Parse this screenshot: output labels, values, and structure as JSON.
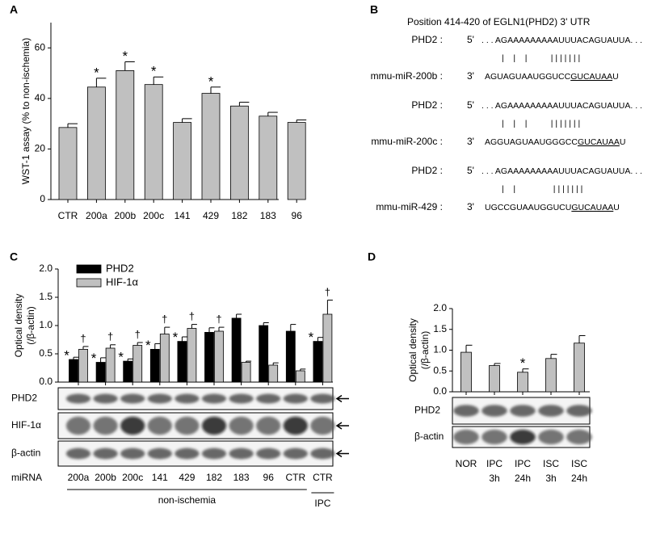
{
  "panel_labels": [
    "A",
    "B",
    "C",
    "D"
  ],
  "chart_data": [
    {
      "type": "bar",
      "ylabel": "WST-1 assay (% to non-ischemia)",
      "categories": [
        "CTR",
        "200a",
        "200b",
        "200c",
        "141",
        "429",
        "182",
        "183",
        "96"
      ],
      "values": [
        28.5,
        44.5,
        51,
        45.5,
        30.5,
        42,
        37,
        33,
        30.5
      ],
      "errors": [
        1.5,
        3.5,
        3.5,
        3,
        1.5,
        2.5,
        1.5,
        1.5,
        1
      ],
      "annotations": [
        null,
        "*",
        "*",
        "*",
        null,
        "*",
        null,
        null,
        null
      ],
      "color": "#c0c0c0",
      "ylim": [
        0,
        70
      ],
      "yticks": [
        0,
        20,
        40,
        60
      ]
    },
    {
      "type": "bar",
      "ylabel_lines": [
        "Optical density",
        "(/β-actin)"
      ],
      "categories": [
        "200a",
        "200b",
        "200c",
        "141",
        "429",
        "182",
        "183",
        "96",
        "CTR",
        "CTR"
      ],
      "series": [
        {
          "name": "PHD2",
          "color": "#000000",
          "values": [
            0.4,
            0.35,
            0.37,
            0.58,
            0.72,
            0.88,
            1.13,
            1.0,
            0.9,
            0.72
          ],
          "errors": [
            0.04,
            0.08,
            0.04,
            0.1,
            0.08,
            0.08,
            0.07,
            0.05,
            0.12,
            0.07
          ],
          "annotations": [
            "*",
            "*",
            "*",
            "*",
            "*",
            null,
            null,
            null,
            null,
            "*"
          ]
        },
        {
          "name": "HIF-1α",
          "color": "#c0c0c0",
          "values": [
            0.58,
            0.6,
            0.65,
            0.85,
            0.95,
            0.9,
            0.35,
            0.3,
            0.2,
            1.2
          ],
          "errors": [
            0.05,
            0.06,
            0.05,
            0.12,
            0.07,
            0.07,
            0.02,
            0.04,
            0.03,
            0.25
          ],
          "annotations": [
            "†",
            "†",
            "†",
            "†",
            "†",
            "†",
            null,
            null,
            null,
            "†"
          ]
        }
      ],
      "ylim": [
        0,
        2
      ],
      "yticks": [
        {
          "value": 0,
          "label": "0.0"
        },
        {
          "value": 0.5,
          "label": "0.5"
        },
        {
          "value": 1,
          "label": "1.0"
        },
        {
          "value": 1.5,
          "label": "1.5"
        },
        {
          "value": 2,
          "label": "2.0"
        }
      ],
      "blot_rows": [
        "PHD2",
        "HIF-1α",
        "β-actin"
      ],
      "category_axis_label": "miRNA",
      "groups": [
        {
          "label": "non-ischemia",
          "from": 0,
          "to": 8
        },
        {
          "label": "IPC",
          "from": 9,
          "to": 9
        }
      ]
    },
    {
      "type": "bar",
      "ylabel_lines": [
        "Optical density",
        "(/β-actin)"
      ],
      "categories": [
        "NOR",
        "IPC",
        "IPC",
        "ISC",
        "ISC"
      ],
      "category_sublabels": [
        null,
        "3h",
        "24h",
        "3h",
        "24h"
      ],
      "values": [
        0.95,
        0.63,
        0.47,
        0.8,
        1.17
      ],
      "errors": [
        0.17,
        0.05,
        0.08,
        0.1,
        0.18
      ],
      "annotations": [
        null,
        null,
        "*",
        null,
        null
      ],
      "color": "#c0c0c0",
      "ylim": [
        0,
        2
      ],
      "yticks": [
        {
          "value": 0,
          "label": "0.0"
        },
        {
          "value": 0.5,
          "label": "0.5"
        },
        {
          "value": 1,
          "label": "1.0"
        },
        {
          "value": 1.5,
          "label": "1.5"
        },
        {
          "value": 2,
          "label": "2.0"
        }
      ],
      "blot_rows": [
        "PHD2",
        "β-actin"
      ]
    }
  ],
  "panel_b": {
    "title": "Position 414-420 of EGLN1(PHD2) 3' UTR",
    "alignments": [
      {
        "target": "PHD2 :",
        "target_end": "5'",
        "target_seq": ". . . AGAAAAAAAAAUUUACAGUAUUA. . .",
        "pairs": "|    |    |          | | | | | | |",
        "mirna": "mmu-miR-200b :",
        "mirna_end": "3'",
        "mirna_before": "AGUAGUAAUGGUCC",
        "mirna_seed": "GUCAUAA",
        "mirna_after": "U"
      },
      {
        "target": "PHD2 :",
        "target_end": "5'",
        "target_seq": ". . . AGAAAAAAAAAUUUACAGUAUUA. . .",
        "pairs": "|    |    |          | | | | | | |",
        "mirna": "mmu-miR-200c :",
        "mirna_end": "3'",
        "mirna_before": "AGGUAGUAAUGGGCC",
        "mirna_seed": "GUCAUAA",
        "mirna_after": "U"
      },
      {
        "target": "PHD2 :",
        "target_end": "5'",
        "target_seq": ". . . AGAAAAAAAAAUUUACAGUAUUA. . .",
        "pairs": "|    |                | | | | | | |",
        "mirna": "mmu-miR-429 :",
        "mirna_end": "3'",
        "mirna_before": "UGCCGUAAUGGUCU",
        "mirna_seed": "GUCAUAA",
        "mirna_after": "U"
      }
    ]
  }
}
